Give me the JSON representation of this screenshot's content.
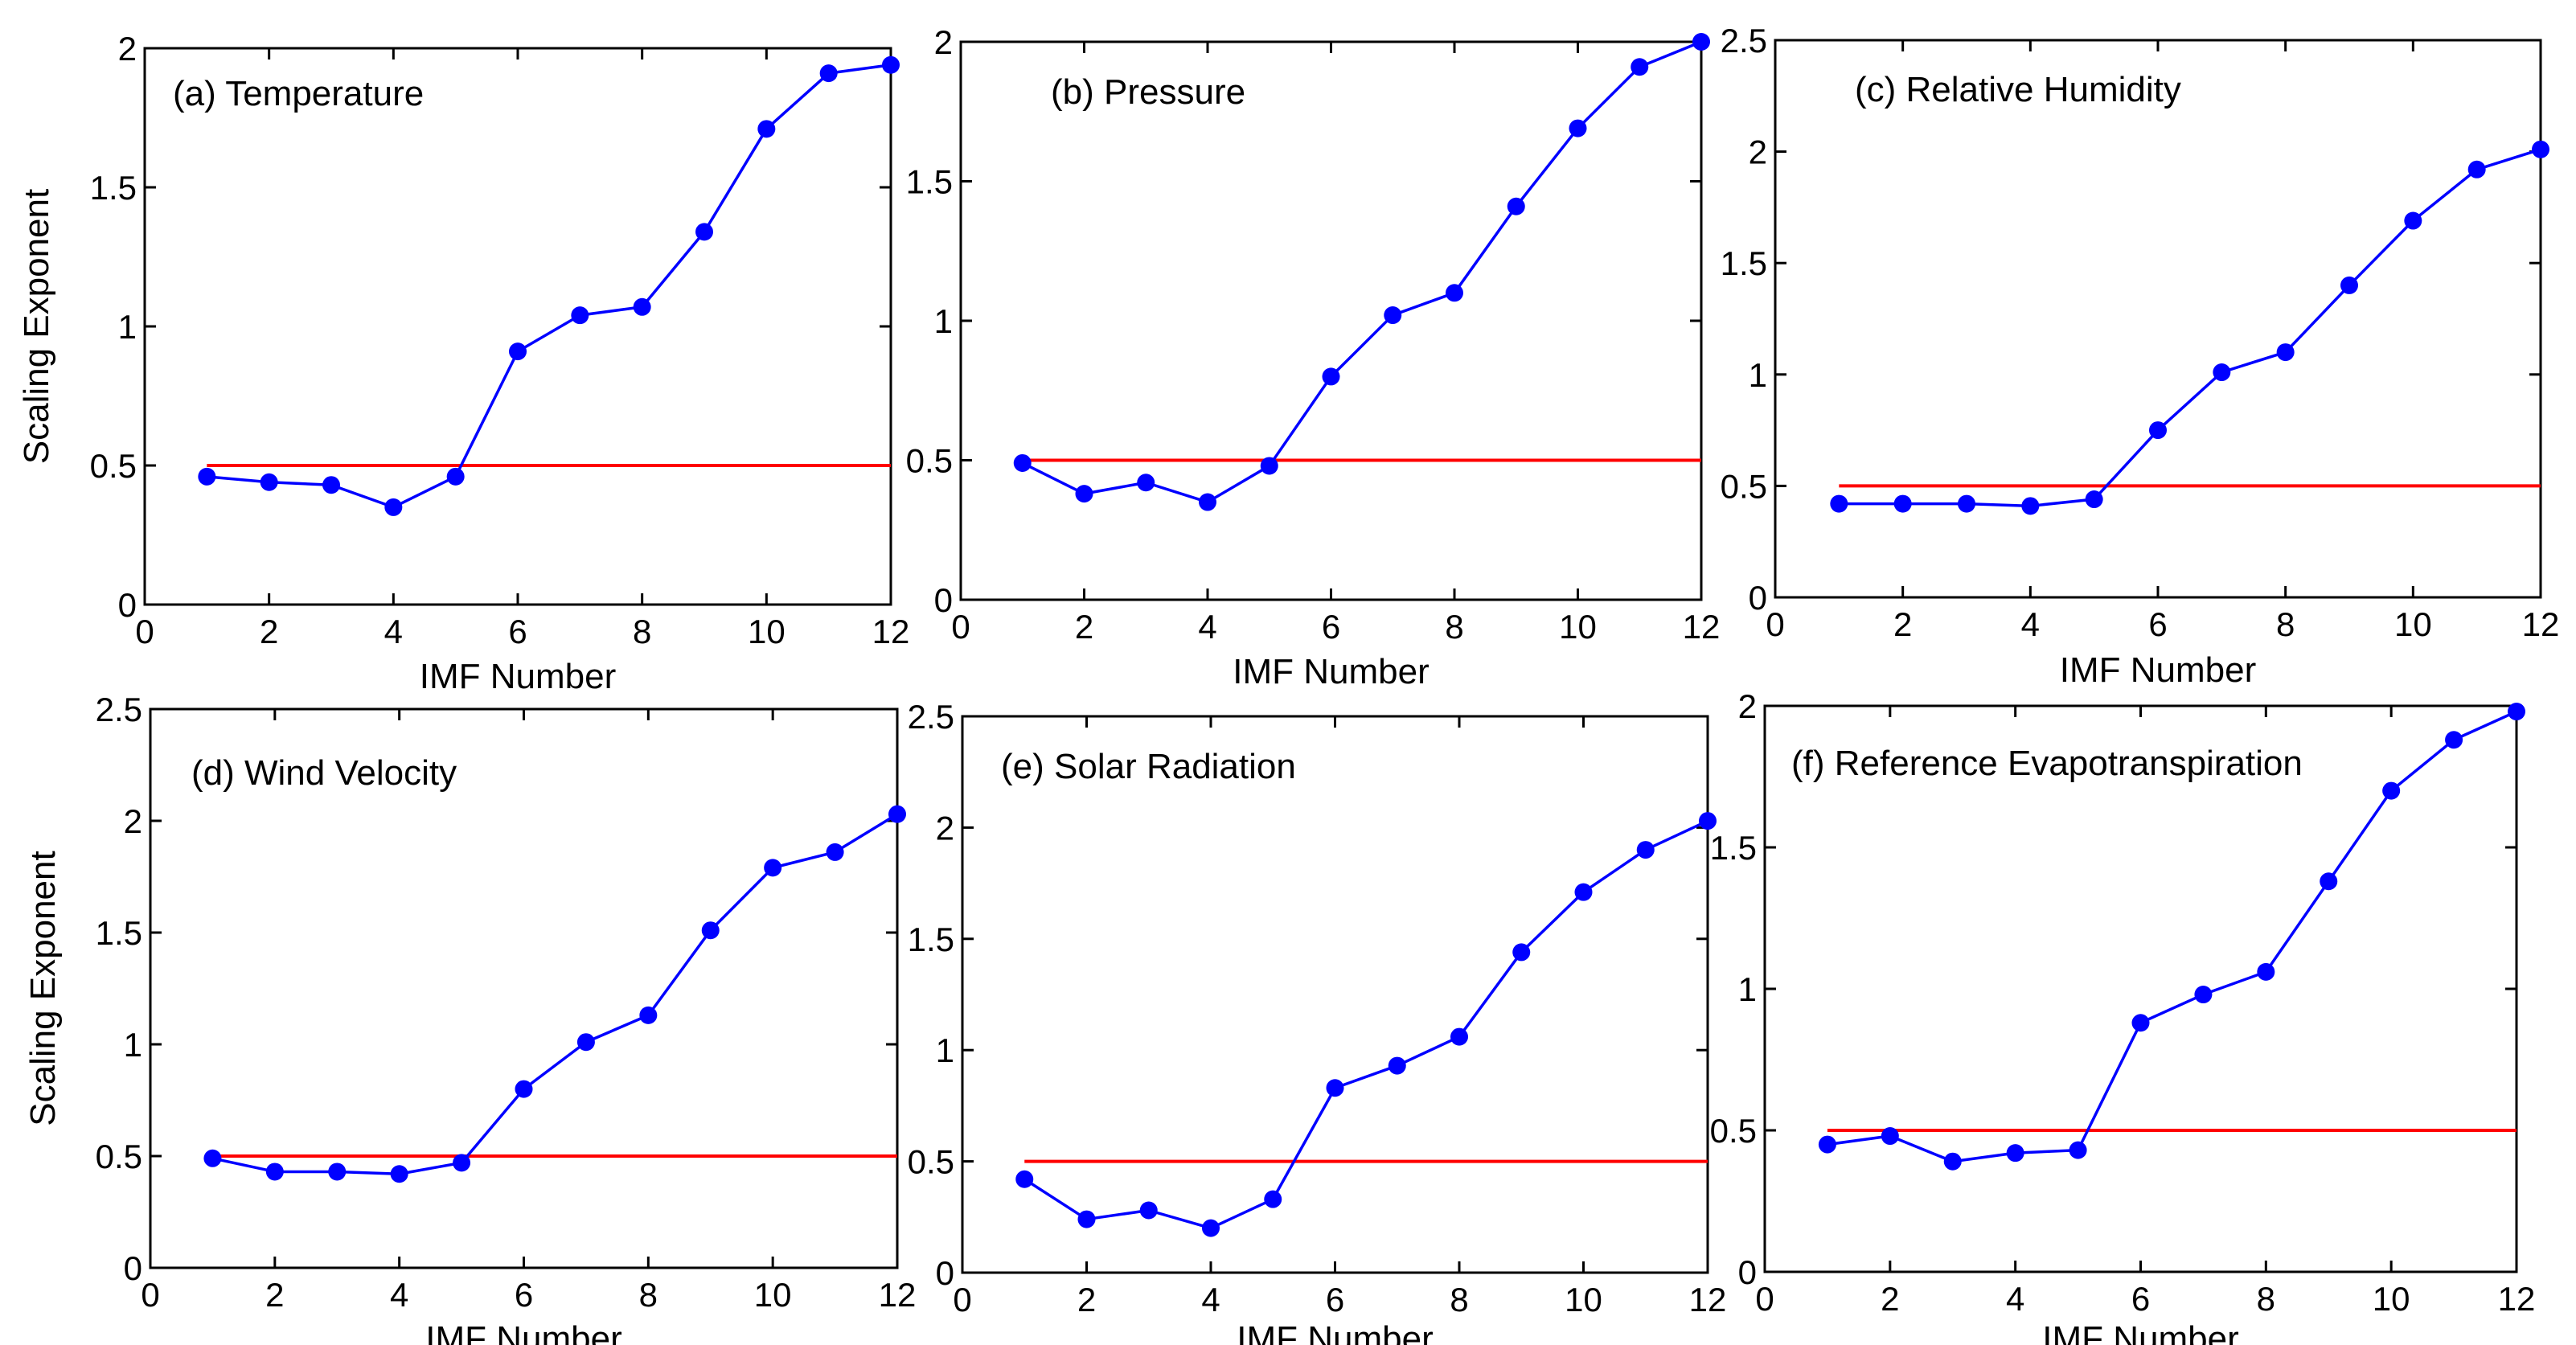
{
  "colors": {
    "series": "#0000ff",
    "reference": "#ff0000",
    "axis": "#000000",
    "background": "#ffffff"
  },
  "chart_data": [
    {
      "type": "line",
      "title": "(a) Temperature",
      "xlabel": "IMF Number",
      "ylabel": "Scaling Exponent",
      "xlim": [
        0,
        12
      ],
      "ylim": [
        0,
        2
      ],
      "xticks": [
        0,
        2,
        4,
        6,
        8,
        10,
        12
      ],
      "yticks": [
        0,
        0.5,
        1,
        1.5,
        2
      ],
      "x": [
        1,
        2,
        3,
        4,
        5,
        6,
        7,
        8,
        9,
        10,
        11,
        12
      ],
      "series": [
        {
          "name": "Scaling Exponent",
          "values": [
            0.46,
            0.44,
            0.43,
            0.35,
            0.46,
            0.91,
            1.04,
            1.07,
            1.34,
            1.71,
            1.91,
            1.94
          ]
        }
      ],
      "reference_line": {
        "y": 0.5,
        "x_start": 1,
        "x_end": 12
      }
    },
    {
      "type": "line",
      "title": "(b) Pressure",
      "xlabel": "IMF Number",
      "ylabel": "",
      "xlim": [
        0,
        12
      ],
      "ylim": [
        0,
        2
      ],
      "xticks": [
        0,
        2,
        4,
        6,
        8,
        10,
        12
      ],
      "yticks": [
        0,
        0.5,
        1,
        1.5,
        2
      ],
      "x": [
        1,
        2,
        3,
        4,
        5,
        6,
        7,
        8,
        9,
        10,
        11,
        12
      ],
      "series": [
        {
          "name": "Scaling Exponent",
          "values": [
            0.49,
            0.38,
            0.42,
            0.35,
            0.48,
            0.8,
            1.02,
            1.1,
            1.41,
            1.69,
            1.91,
            2.0
          ]
        }
      ],
      "reference_line": {
        "y": 0.5,
        "x_start": 1,
        "x_end": 12
      }
    },
    {
      "type": "line",
      "title": "(c) Relative Humidity",
      "xlabel": "IMF Number",
      "ylabel": "",
      "xlim": [
        0,
        12
      ],
      "ylim": [
        0,
        2.5
      ],
      "xticks": [
        0,
        2,
        4,
        6,
        8,
        10,
        12
      ],
      "yticks": [
        0,
        0.5,
        1,
        1.5,
        2,
        2.5
      ],
      "x": [
        1,
        2,
        3,
        4,
        5,
        6,
        7,
        8,
        9,
        10,
        11,
        12
      ],
      "series": [
        {
          "name": "Scaling Exponent",
          "values": [
            0.42,
            0.42,
            0.42,
            0.41,
            0.44,
            0.75,
            1.01,
            1.1,
            1.4,
            1.69,
            1.92,
            2.01
          ]
        }
      ],
      "reference_line": {
        "y": 0.5,
        "x_start": 1,
        "x_end": 12
      }
    },
    {
      "type": "line",
      "title": "(d) Wind Velocity",
      "xlabel": "IMF Number",
      "ylabel": "Scaling Exponent",
      "xlim": [
        0,
        12
      ],
      "ylim": [
        0,
        2.5
      ],
      "xticks": [
        0,
        2,
        4,
        6,
        8,
        10,
        12
      ],
      "yticks": [
        0,
        0.5,
        1,
        1.5,
        2,
        2.5
      ],
      "x": [
        1,
        2,
        3,
        4,
        5,
        6,
        7,
        8,
        9,
        10,
        11,
        12
      ],
      "series": [
        {
          "name": "Scaling Exponent",
          "values": [
            0.49,
            0.43,
            0.43,
            0.42,
            0.47,
            0.8,
            1.01,
            1.13,
            1.51,
            1.79,
            1.86,
            2.03
          ]
        }
      ],
      "reference_line": {
        "y": 0.5,
        "x_start": 1,
        "x_end": 12
      }
    },
    {
      "type": "line",
      "title": "(e) Solar Radiation",
      "xlabel": "IMF Number",
      "ylabel": "",
      "xlim": [
        0,
        12
      ],
      "ylim": [
        0,
        2.5
      ],
      "xticks": [
        0,
        2,
        4,
        6,
        8,
        10,
        12
      ],
      "yticks": [
        0,
        0.5,
        1,
        1.5,
        2,
        2.5
      ],
      "x": [
        1,
        2,
        3,
        4,
        5,
        6,
        7,
        8,
        9,
        10,
        11,
        12
      ],
      "series": [
        {
          "name": "Scaling Exponent",
          "values": [
            0.42,
            0.24,
            0.28,
            0.2,
            0.33,
            0.83,
            0.93,
            1.06,
            1.44,
            1.71,
            1.9,
            2.03
          ]
        }
      ],
      "reference_line": {
        "y": 0.5,
        "x_start": 1,
        "x_end": 12
      }
    },
    {
      "type": "line",
      "title": "(f) Reference Evapotranspiration",
      "xlabel": "IMF Number",
      "ylabel": "",
      "xlim": [
        0,
        12
      ],
      "ylim": [
        0,
        2
      ],
      "xticks": [
        0,
        2,
        4,
        6,
        8,
        10,
        12
      ],
      "yticks": [
        0,
        0.5,
        1,
        1.5,
        2
      ],
      "x": [
        1,
        2,
        3,
        4,
        5,
        6,
        7,
        8,
        9,
        10,
        11,
        12
      ],
      "series": [
        {
          "name": "Scaling Exponent",
          "values": [
            0.45,
            0.48,
            0.39,
            0.42,
            0.43,
            0.88,
            0.98,
            1.06,
            1.38,
            1.7,
            1.88,
            1.98
          ]
        }
      ],
      "reference_line": {
        "y": 0.5,
        "x_start": 1,
        "x_end": 12
      }
    }
  ]
}
